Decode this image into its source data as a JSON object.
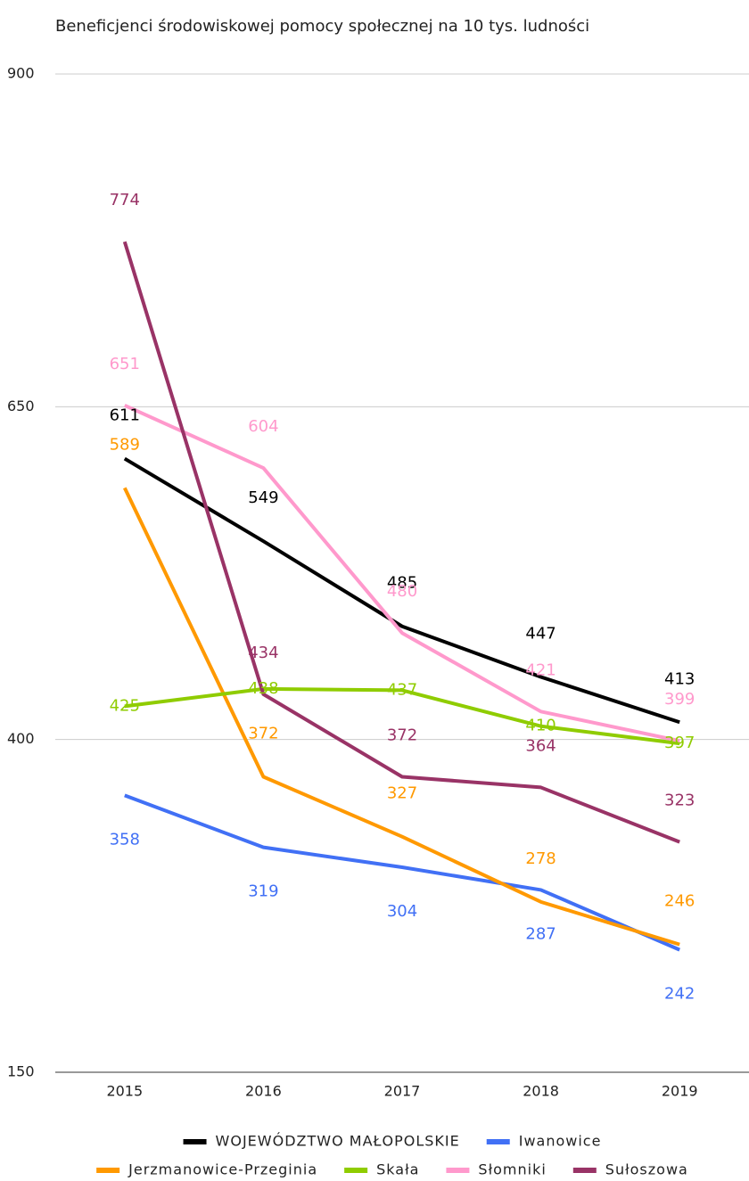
{
  "chart_data": {
    "type": "line",
    "title": "Beneficjenci środowiskowej pomocy społecznej na 10 tys. ludności",
    "categories": [
      "2015",
      "2016",
      "2017",
      "2018",
      "2019"
    ],
    "series": [
      {
        "name": "WOJEWÓDZTWO MAŁOPOLSKIE",
        "color": "#000000",
        "values": [
          611,
          549,
          485,
          447,
          413
        ]
      },
      {
        "name": "Iwanowice",
        "color": "#4170f5",
        "values": [
          358,
          319,
          304,
          287,
          242
        ]
      },
      {
        "name": "Jerzmanowice-Przeginia",
        "color": "#ff9900",
        "values": [
          589,
          372,
          327,
          278,
          246
        ]
      },
      {
        "name": "Skała",
        "color": "#8fcc00",
        "values": [
          425,
          438,
          437,
          410,
          397
        ]
      },
      {
        "name": "Słomniki",
        "color": "#ff99cc",
        "values": [
          651,
          604,
          480,
          421,
          399
        ]
      },
      {
        "name": "Sułoszowa",
        "color": "#993366",
        "values": [
          774,
          434,
          372,
          364,
          323
        ]
      }
    ],
    "ylim": [
      150,
      900
    ],
    "yticks": [
      150,
      400,
      650,
      900
    ],
    "grid": true,
    "legend": "bottom"
  }
}
